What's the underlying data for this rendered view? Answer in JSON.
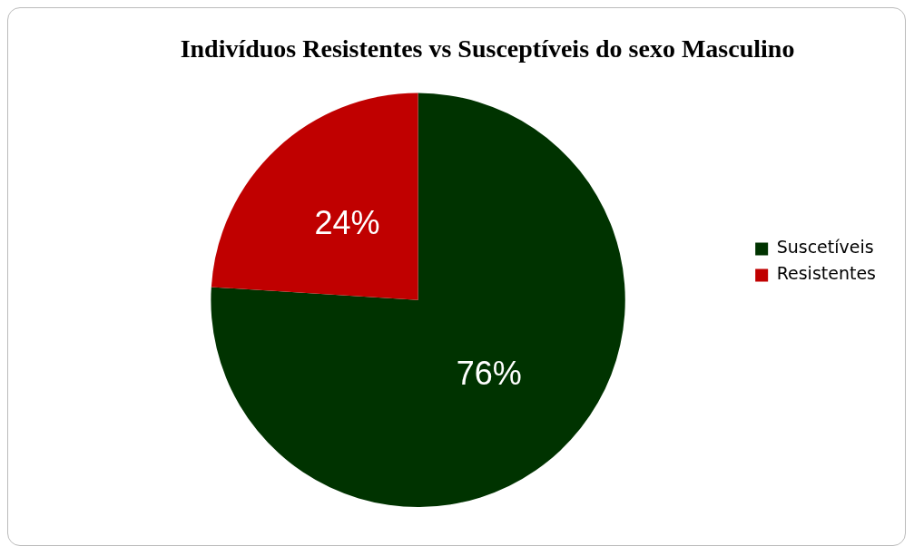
{
  "chart_data": {
    "type": "pie",
    "title": "Indivíduos Resistentes vs Susceptíveis do sexo Masculino",
    "categories": [
      "Suscetíveis",
      "Resistentes"
    ],
    "values": [
      76,
      24
    ],
    "colors": [
      "#003300",
      "#c00000"
    ],
    "value_labels": [
      "76%",
      "24%"
    ],
    "legend": "right"
  }
}
